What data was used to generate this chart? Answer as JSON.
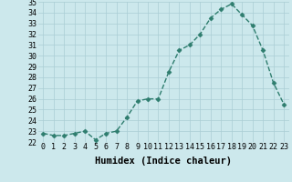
{
  "x": [
    0,
    1,
    2,
    3,
    4,
    5,
    6,
    7,
    8,
    9,
    10,
    11,
    12,
    13,
    14,
    15,
    16,
    17,
    18,
    19,
    20,
    21,
    22,
    23
  ],
  "y": [
    22.8,
    22.6,
    22.6,
    22.8,
    23.0,
    22.2,
    22.8,
    23.0,
    24.3,
    25.8,
    26.0,
    26.0,
    28.5,
    30.5,
    31.0,
    32.0,
    33.5,
    34.3,
    34.8,
    33.8,
    32.8,
    30.5,
    27.5,
    25.5
  ],
  "line_color": "#2e7d6e",
  "bg_color": "#cce8ec",
  "grid_color": "#aacdd4",
  "xlabel": "Humidex (Indice chaleur)",
  "ylim": [
    22,
    35
  ],
  "xlim": [
    -0.5,
    23.5
  ],
  "yticks": [
    22,
    23,
    24,
    25,
    26,
    27,
    28,
    29,
    30,
    31,
    32,
    33,
    34,
    35
  ],
  "xticks": [
    0,
    1,
    2,
    3,
    4,
    5,
    6,
    7,
    8,
    9,
    10,
    11,
    12,
    13,
    14,
    15,
    16,
    17,
    18,
    19,
    20,
    21,
    22,
    23
  ],
  "marker": "D",
  "marker_size": 2.5,
  "line_width": 1.0,
  "xlabel_fontsize": 7.5,
  "tick_fontsize": 6.0
}
